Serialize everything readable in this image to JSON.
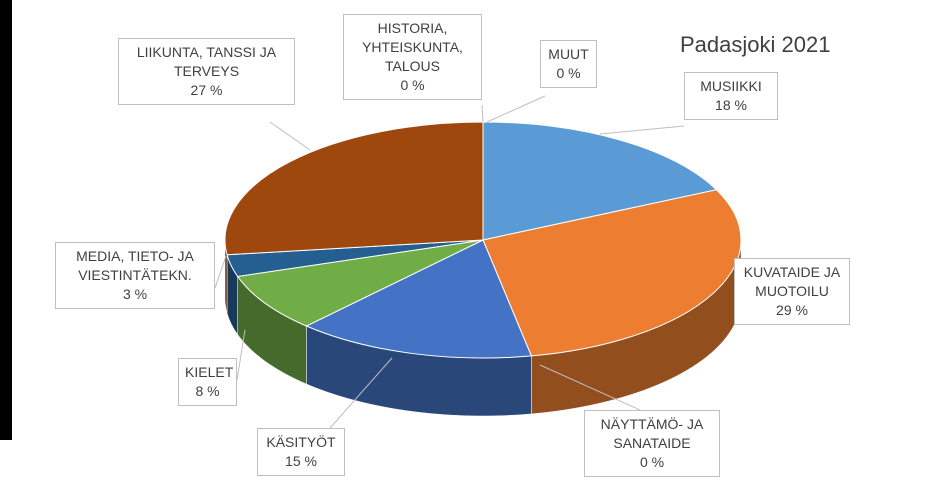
{
  "chart_data": {
    "type": "pie3d",
    "title": "Padasjoki 2021",
    "categories": [
      "MUSIIKKI",
      "KUVATAIDE JA MUOTOILU",
      "NÄYTTÄMÖ- JA SANATAIDE",
      "KÄSITYÖT",
      "KIELET",
      "MEDIA, TIETO- JA VIESTINTÄTEKN.",
      "LIIKUNTA, TANSSI JA TERVEYS",
      "HISTORIA, YHTEISKUNTA, TALOUS",
      "MUUT"
    ],
    "values": [
      18,
      29,
      0,
      15,
      8,
      3,
      27,
      0,
      0
    ],
    "value_labels": [
      "18 %",
      "29 %",
      "0 %",
      "15 %",
      "8 %",
      "3 %",
      "27 %",
      "0 %",
      "0 %"
    ],
    "colors": [
      "#5b9bd5",
      "#ed7d31",
      "#a5a5a5",
      "#4472c4",
      "#70ad47",
      "#255e91",
      "#9e480e",
      "#636363",
      "#997300"
    ]
  }
}
